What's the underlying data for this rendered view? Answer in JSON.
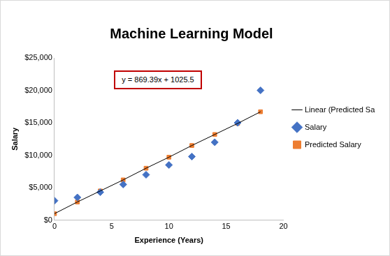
{
  "chart_data": {
    "type": "scatter",
    "title": "Machine Learning Model",
    "x_label": "Experience (Years)",
    "y_label": "Salary",
    "annotation": "y = 869.39x + 1025.5",
    "x": [
      0,
      2,
      4,
      6,
      8,
      10,
      12,
      14,
      16,
      18
    ],
    "series": [
      {
        "name": "Salary",
        "color": "#4472c4",
        "marker": "diamond",
        "values": [
          3000,
          3500,
          4300,
          5500,
          7000,
          8500,
          9800,
          12000,
          15000,
          20000
        ]
      },
      {
        "name": "Predicted Salary",
        "color": "#ed7d31",
        "marker": "square",
        "values": [
          1000,
          2800,
          4500,
          6200,
          8000,
          9700,
          11500,
          13200,
          14900,
          16700
        ]
      },
      {
        "name": "Linear (Predicted Salary)",
        "color": "#000000",
        "type": "line",
        "marker": "none",
        "line_style": "solid",
        "values": [
          1000,
          2800,
          4500,
          6200,
          8000,
          9700,
          11500,
          13200,
          14900,
          16700
        ]
      }
    ],
    "xlim": [
      0,
      20
    ],
    "xticks": [
      0,
      5,
      10,
      15,
      20
    ],
    "ylim": [
      0,
      25000
    ],
    "yticks": [
      {
        "value": 0,
        "label": "$0"
      },
      {
        "value": 5000,
        "label": "$5,000"
      },
      {
        "value": 10000,
        "label": "$10,000"
      },
      {
        "value": 15000,
        "label": "$15,000"
      },
      {
        "value": 20000,
        "label": "$20,000"
      },
      {
        "value": 25000,
        "label": "$25,000"
      }
    ],
    "grid": false,
    "legend": "right"
  }
}
